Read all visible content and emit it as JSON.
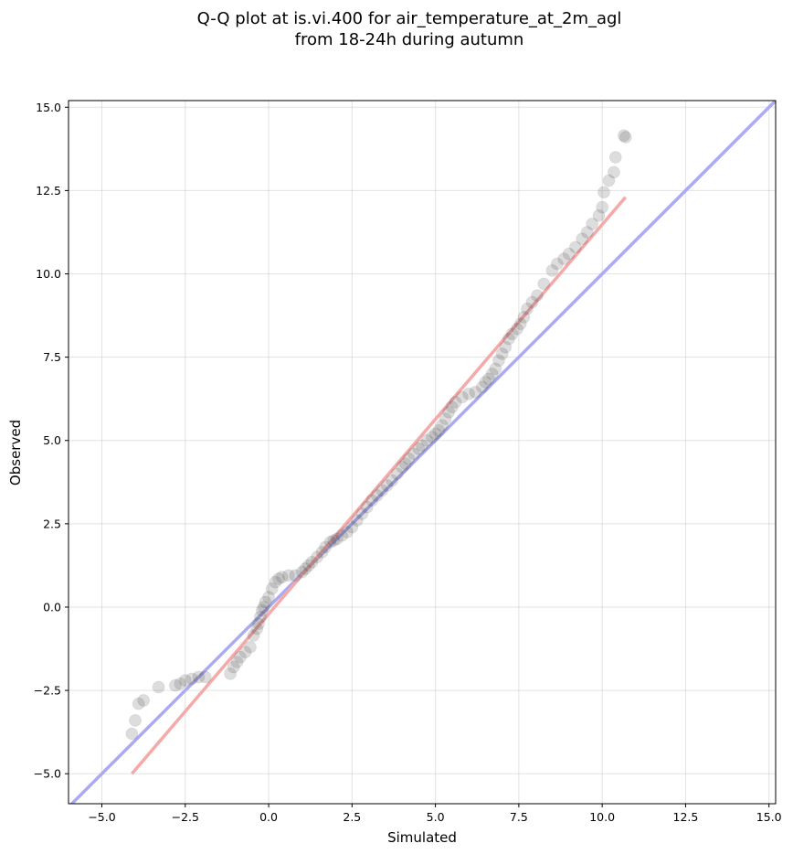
{
  "chart_data": {
    "type": "scatter",
    "title_line1": "Q-Q plot at is.vi.400 for air_temperature_at_2m_agl",
    "title_line2": "from 18-24h during autumn",
    "xlabel": "Simulated",
    "ylabel": "Observed",
    "xlim": [
      -6.0,
      15.2
    ],
    "ylim": [
      -5.9,
      15.2
    ],
    "xticks": [
      -5.0,
      -2.5,
      0.0,
      2.5,
      5.0,
      7.5,
      10.0,
      12.5,
      15.0
    ],
    "xtick_labels": [
      "−5.0",
      "−2.5",
      "0.0",
      "2.5",
      "5.0",
      "7.5",
      "10.0",
      "12.5",
      "15.0"
    ],
    "yticks": [
      -5.0,
      -2.5,
      0.0,
      2.5,
      5.0,
      7.5,
      10.0,
      12.5,
      15.0
    ],
    "ytick_labels": [
      "−5.0",
      "−2.5",
      "0.0",
      "2.5",
      "5.0",
      "7.5",
      "10.0",
      "12.5",
      "15.0"
    ],
    "grid": true,
    "colors": {
      "points": "#404040",
      "identity_line": "#aaaaf5",
      "fit_line": "#f5aaaa"
    },
    "identity_line": {
      "x": [
        -6.0,
        15.2
      ],
      "y": [
        -6.0,
        15.2
      ]
    },
    "fit_line": {
      "x": [
        -4.1,
        10.7
      ],
      "y": [
        -5.0,
        12.3
      ]
    },
    "series": [
      {
        "x": [
          -4.1,
          -4.0,
          -3.9,
          -3.75,
          -3.3,
          -2.8,
          -2.65,
          -2.5,
          -2.3,
          -2.1,
          -1.9,
          -1.15,
          -1.05,
          -0.95,
          -0.85,
          -0.7,
          -0.55,
          -0.45,
          -0.35,
          -0.3,
          -0.25,
          -0.2,
          -0.15,
          -0.1,
          0.0,
          0.1,
          0.2,
          0.3,
          0.4,
          0.6,
          0.8,
          1.0,
          1.1,
          1.2,
          1.3,
          1.45,
          1.6,
          1.7,
          1.85,
          1.95,
          2.05,
          2.2,
          2.35,
          2.5,
          2.65,
          2.8,
          2.95,
          3.1,
          3.25,
          3.4,
          3.55,
          3.7,
          3.85,
          4.0,
          4.1,
          4.2,
          4.35,
          4.5,
          4.6,
          4.75,
          4.9,
          5.0,
          5.1,
          5.2,
          5.3,
          5.4,
          5.5,
          5.6,
          5.8,
          6.0,
          6.2,
          6.4,
          6.5,
          6.6,
          6.7,
          6.8,
          6.9,
          7.0,
          7.1,
          7.2,
          7.3,
          7.45,
          7.55,
          7.65,
          7.75,
          7.9,
          8.05,
          8.25,
          8.5,
          8.65,
          8.85,
          9.0,
          9.2,
          9.4,
          9.55,
          9.7,
          9.9,
          10.0,
          10.05,
          10.2,
          10.35,
          10.4,
          10.65,
          10.7
        ],
        "y": [
          -3.8,
          -3.4,
          -2.9,
          -2.8,
          -2.4,
          -2.35,
          -2.3,
          -2.2,
          -2.15,
          -2.1,
          -2.1,
          -2.0,
          -1.8,
          -1.65,
          -1.5,
          -1.35,
          -1.2,
          -0.85,
          -0.65,
          -0.5,
          -0.3,
          -0.1,
          0.0,
          0.15,
          0.3,
          0.55,
          0.75,
          0.85,
          0.9,
          0.95,
          0.95,
          1.05,
          1.15,
          1.25,
          1.35,
          1.5,
          1.65,
          1.8,
          1.95,
          2.0,
          2.05,
          2.15,
          2.25,
          2.4,
          2.6,
          2.8,
          3.0,
          3.2,
          3.35,
          3.5,
          3.65,
          3.8,
          4.0,
          4.2,
          4.3,
          4.45,
          4.6,
          4.75,
          4.85,
          5.0,
          5.1,
          5.2,
          5.3,
          5.45,
          5.65,
          5.85,
          6.0,
          6.15,
          6.3,
          6.4,
          6.45,
          6.6,
          6.75,
          6.85,
          7.0,
          7.15,
          7.4,
          7.6,
          7.8,
          8.05,
          8.2,
          8.35,
          8.5,
          8.7,
          8.95,
          9.15,
          9.35,
          9.7,
          10.1,
          10.3,
          10.45,
          10.6,
          10.8,
          11.05,
          11.25,
          11.5,
          11.75,
          12.0,
          12.45,
          12.8,
          13.05,
          13.5,
          14.15,
          14.1
        ]
      }
    ]
  }
}
